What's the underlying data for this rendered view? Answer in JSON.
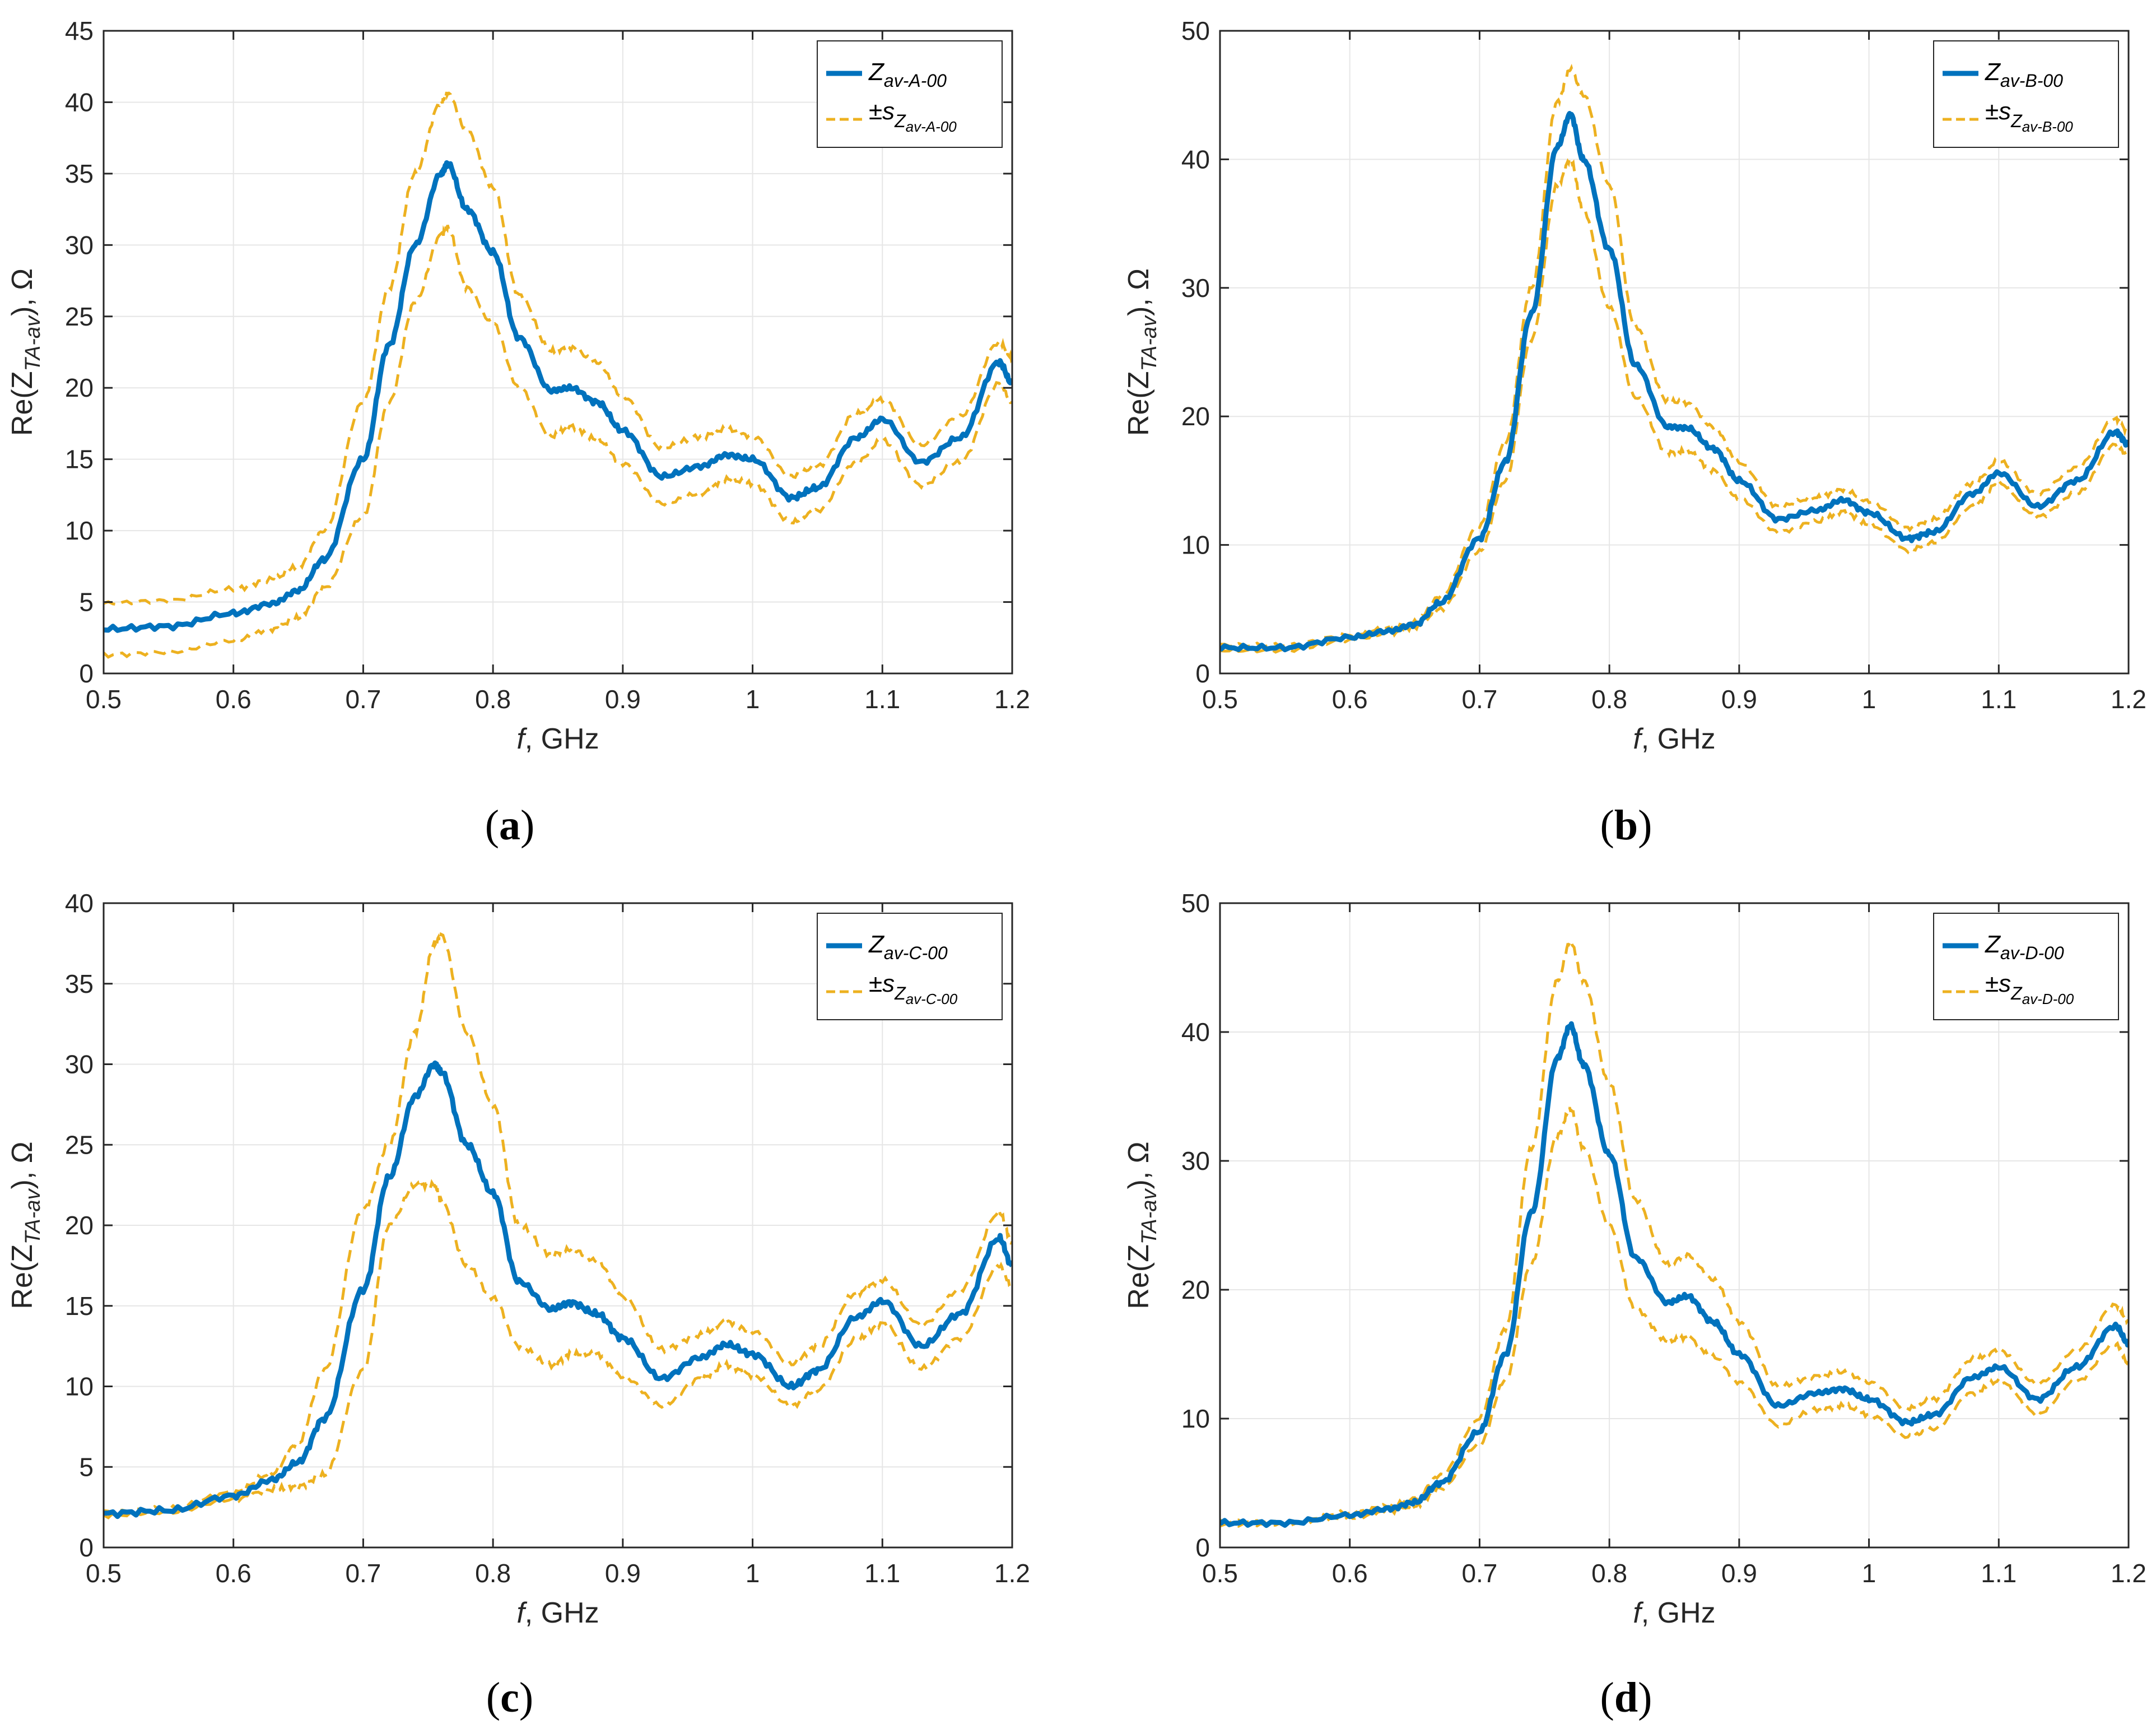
{
  "colors": {
    "mean": "#0072BD",
    "std": "#EDB120",
    "grid": "#e6e6e6",
    "axis": "#262626"
  },
  "chart_data": [
    {
      "panel": "a",
      "type": "line",
      "xlabel_italic": "f",
      "xlabel_rest": ", GHz",
      "ylabel_pre": "Re(Z",
      "ylabel_sub": "TA-av",
      "ylabel_post": "), Ω",
      "xlim": [
        0.5,
        1.2
      ],
      "ylim": [
        0,
        45
      ],
      "xticks": [
        0.5,
        0.6,
        0.7,
        0.8,
        0.9,
        1,
        1.1,
        1.2
      ],
      "xtick_labels": [
        "0.5",
        "0.6",
        "0.7",
        "0.8",
        "0.9",
        "1",
        "1.1",
        "1.2"
      ],
      "yticks": [
        0,
        5,
        10,
        15,
        20,
        25,
        30,
        35,
        40,
        45
      ],
      "ytick_labels": [
        "0",
        "5",
        "10",
        "15",
        "20",
        "25",
        "30",
        "35",
        "40",
        "45"
      ],
      "legend": {
        "mean_main": "Z",
        "mean_sub": "av-A-00",
        "std_pre": "±s",
        "std_mid": "Z",
        "std_sub": "av-A-00",
        "position": "top-right"
      },
      "x": [
        0.5,
        0.55,
        0.6,
        0.63,
        0.65,
        0.67,
        0.7,
        0.72,
        0.74,
        0.76,
        0.765,
        0.78,
        0.8,
        0.82,
        0.845,
        0.86,
        0.88,
        0.9,
        0.93,
        0.96,
        0.98,
        1.0,
        1.03,
        1.05,
        1.08,
        1.1,
        1.13,
        1.16,
        1.19,
        1.2
      ],
      "series": [
        {
          "name": "mean",
          "values": [
            3.1,
            3.3,
            4.2,
            4.9,
            5.8,
            8.0,
            15.0,
            23.0,
            30.0,
            35.0,
            35.7,
            32.5,
            29.5,
            23.5,
            19.8,
            20.0,
            19.0,
            17.0,
            13.8,
            14.5,
            15.3,
            15.0,
            12.3,
            13.0,
            16.5,
            17.8,
            14.8,
            16.5,
            21.8,
            20.3
          ]
        },
        {
          "name": "upper",
          "values": [
            4.9,
            5.1,
            5.9,
            6.6,
            7.5,
            10.0,
            19.0,
            27.0,
            35.0,
            40.0,
            40.6,
            38.0,
            34.0,
            26.5,
            22.6,
            22.8,
            21.8,
            19.4,
            15.8,
            16.6,
            17.1,
            16.6,
            13.8,
            14.5,
            18.2,
            19.2,
            16.0,
            18.0,
            23.2,
            22.1
          ]
        },
        {
          "name": "lower",
          "values": [
            1.3,
            1.5,
            2.3,
            3.1,
            3.9,
            6.0,
            11.0,
            19.0,
            26.0,
            30.7,
            31.2,
            27.0,
            24.5,
            20.0,
            16.6,
            17.3,
            16.4,
            14.7,
            11.9,
            12.6,
            13.6,
            13.3,
            10.6,
            11.4,
            14.8,
            16.3,
            13.2,
            14.8,
            20.3,
            19.0
          ]
        }
      ]
    },
    {
      "panel": "b",
      "type": "line",
      "xlabel_italic": "f",
      "xlabel_rest": ", GHz",
      "ylabel_pre": "Re(Z",
      "ylabel_sub": "TA-av",
      "ylabel_post": "), Ω",
      "xlim": [
        0.5,
        1.2
      ],
      "ylim": [
        0,
        50
      ],
      "xticks": [
        0.5,
        0.6,
        0.7,
        0.8,
        0.9,
        1,
        1.1,
        1.2
      ],
      "xtick_labels": [
        "0.5",
        "0.6",
        "0.7",
        "0.8",
        "0.9",
        "1",
        "1.1",
        "1.2"
      ],
      "yticks": [
        0,
        10,
        20,
        30,
        40,
        50
      ],
      "ytick_labels": [
        "0",
        "10",
        "20",
        "30",
        "40",
        "50"
      ],
      "legend": {
        "mean_main": "Z",
        "mean_sub": "av-B-00",
        "std_pre": "±s",
        "std_mid": "Z",
        "std_sub": "av-B-00",
        "position": "top-right"
      },
      "x": [
        0.5,
        0.55,
        0.6,
        0.63,
        0.65,
        0.67,
        0.7,
        0.72,
        0.74,
        0.76,
        0.77,
        0.78,
        0.8,
        0.82,
        0.845,
        0.86,
        0.88,
        0.9,
        0.93,
        0.96,
        0.98,
        1.0,
        1.03,
        1.05,
        1.08,
        1.1,
        1.13,
        1.16,
        1.19,
        1.2
      ],
      "series": [
        {
          "name": "mean",
          "values": [
            2.0,
            2.0,
            2.8,
            3.3,
            3.8,
            5.5,
            10.5,
            16.5,
            28.0,
            41.0,
            43.5,
            40.0,
            33.0,
            24.0,
            19.2,
            19.1,
            17.5,
            15.0,
            12.0,
            12.7,
            13.5,
            12.5,
            10.5,
            11.0,
            14.0,
            15.6,
            13.0,
            15.0,
            18.8,
            17.8
          ]
        },
        {
          "name": "upper",
          "values": [
            2.2,
            2.2,
            3.0,
            3.5,
            4.0,
            6.0,
            11.5,
            18.0,
            30.0,
            44.5,
            47.0,
            45.0,
            38.0,
            27.0,
            21.2,
            21.0,
            19.2,
            16.4,
            13.0,
            13.7,
            14.3,
            13.4,
            11.3,
            12.0,
            14.8,
            16.5,
            14.0,
            16.0,
            19.8,
            18.8
          ]
        },
        {
          "name": "lower",
          "values": [
            1.8,
            1.8,
            2.6,
            3.1,
            3.6,
            5.0,
            9.5,
            15.0,
            26.0,
            38.0,
            40.0,
            36.0,
            28.5,
            21.5,
            17.2,
            17.3,
            15.8,
            13.6,
            11.0,
            11.8,
            12.6,
            11.6,
            9.6,
            10.2,
            13.0,
            14.8,
            12.2,
            14.0,
            17.8,
            16.9
          ]
        }
      ]
    },
    {
      "panel": "c",
      "type": "line",
      "xlabel_italic": "f",
      "xlabel_rest": ", GHz",
      "ylabel_pre": "Re(Z",
      "ylabel_sub": "TA-av",
      "ylabel_post": "), Ω",
      "xlim": [
        0.5,
        1.2
      ],
      "ylim": [
        0,
        40
      ],
      "xticks": [
        0.5,
        0.6,
        0.7,
        0.8,
        0.9,
        1,
        1.1,
        1.2
      ],
      "xtick_labels": [
        "0.5",
        "0.6",
        "0.7",
        "0.8",
        "0.9",
        "1",
        "1.1",
        "1.2"
      ],
      "yticks": [
        0,
        5,
        10,
        15,
        20,
        25,
        30,
        35,
        40
      ],
      "ytick_labels": [
        "0",
        "5",
        "10",
        "15",
        "20",
        "25",
        "30",
        "35",
        "40"
      ],
      "legend": {
        "mean_main": "Z",
        "mean_sub": "av-C-00",
        "std_pre": "±s",
        "std_mid": "Z",
        "std_sub": "av-C-00",
        "position": "top-right"
      },
      "x": [
        0.5,
        0.55,
        0.6,
        0.63,
        0.65,
        0.67,
        0.7,
        0.72,
        0.74,
        0.755,
        0.76,
        0.78,
        0.8,
        0.82,
        0.845,
        0.86,
        0.88,
        0.9,
        0.93,
        0.96,
        0.98,
        1.0,
        1.03,
        1.05,
        1.08,
        1.1,
        1.13,
        1.16,
        1.19,
        1.2
      ],
      "series": [
        {
          "name": "mean",
          "values": [
            2.1,
            2.3,
            3.2,
            4.2,
            5.3,
            8.0,
            16.0,
            23.0,
            28.0,
            30.0,
            29.5,
            25.0,
            22.0,
            16.5,
            14.8,
            15.2,
            14.5,
            13.0,
            10.5,
            11.8,
            12.6,
            12.0,
            10.0,
            11.0,
            14.3,
            15.3,
            12.5,
            14.5,
            19.2,
            17.5
          ]
        },
        {
          "name": "upper",
          "values": [
            2.2,
            2.4,
            3.4,
            4.6,
            6.5,
            11.0,
            21.0,
            25.0,
            32.0,
            37.5,
            38.0,
            32.0,
            27.5,
            20.0,
            18.2,
            18.5,
            17.8,
            15.6,
            12.3,
            13.2,
            14.0,
            13.4,
            11.4,
            12.5,
            15.8,
            16.6,
            13.8,
            16.0,
            20.8,
            19.0
          ]
        },
        {
          "name": "lower",
          "values": [
            2.0,
            2.2,
            3.0,
            3.6,
            3.8,
            4.5,
            11.0,
            20.0,
            22.5,
            22.5,
            21.5,
            17.5,
            15.5,
            12.5,
            11.3,
            12.0,
            12.0,
            10.6,
            8.8,
            10.5,
            11.3,
            10.7,
            8.8,
            9.8,
            12.9,
            13.9,
            11.1,
            13.0,
            17.5,
            16.2
          ]
        }
      ]
    },
    {
      "panel": "d",
      "type": "line",
      "xlabel_italic": "f",
      "xlabel_rest": ", GHz",
      "ylabel_pre": "Re(Z",
      "ylabel_sub": "TA-av",
      "ylabel_post": "), Ω",
      "xlim": [
        0.5,
        1.2
      ],
      "ylim": [
        0,
        50
      ],
      "xticks": [
        0.5,
        0.6,
        0.7,
        0.8,
        0.9,
        1,
        1.1,
        1.2
      ],
      "xtick_labels": [
        "0.5",
        "0.6",
        "0.7",
        "0.8",
        "0.9",
        "1",
        "1.1",
        "1.2"
      ],
      "yticks": [
        0,
        10,
        20,
        30,
        40,
        50
      ],
      "ytick_labels": [
        "0",
        "10",
        "20",
        "30",
        "40",
        "50"
      ],
      "legend": {
        "mean_main": "Z",
        "mean_sub": "av-D-00",
        "std_pre": "±s",
        "std_mid": "Z",
        "std_sub": "av-D-00",
        "position": "top-right"
      },
      "x": [
        0.5,
        0.55,
        0.6,
        0.63,
        0.65,
        0.67,
        0.7,
        0.72,
        0.74,
        0.76,
        0.77,
        0.78,
        0.8,
        0.82,
        0.845,
        0.86,
        0.88,
        0.9,
        0.93,
        0.96,
        0.98,
        1.0,
        1.03,
        1.05,
        1.08,
        1.1,
        1.13,
        1.16,
        1.19,
        1.2
      ],
      "series": [
        {
          "name": "mean",
          "values": [
            1.9,
            1.9,
            2.5,
            3.0,
            3.5,
            5.0,
            9.0,
            15.0,
            26.0,
            38.0,
            40.5,
            37.5,
            30.5,
            22.5,
            19.0,
            19.5,
            17.5,
            15.0,
            11.0,
            12.0,
            12.3,
            11.5,
            9.7,
            10.3,
            13.2,
            14.0,
            11.5,
            14.0,
            17.2,
            15.8
          ]
        },
        {
          "name": "upper",
          "values": [
            2.0,
            2.0,
            2.7,
            3.2,
            3.8,
            5.6,
            10.0,
            17.0,
            31.0,
            44.0,
            47.0,
            44.0,
            36.0,
            27.0,
            22.0,
            22.7,
            20.8,
            17.5,
            12.5,
            13.3,
            13.6,
            12.8,
            10.8,
            11.5,
            14.6,
            15.3,
            12.7,
            15.3,
            18.8,
            17.6
          ]
        },
        {
          "name": "lower",
          "values": [
            1.8,
            1.8,
            2.3,
            2.8,
            3.2,
            4.6,
            8.0,
            13.0,
            22.0,
            32.0,
            34.0,
            31.0,
            25.0,
            18.5,
            16.0,
            16.3,
            14.8,
            12.8,
            9.5,
            10.7,
            11.0,
            10.3,
            8.6,
            9.2,
            12.0,
            12.9,
            10.4,
            12.9,
            15.8,
            14.3
          ]
        }
      ]
    }
  ],
  "captions": [
    {
      "open": "(",
      "letter": "a",
      "close": ")"
    },
    {
      "open": "(",
      "letter": "b",
      "close": ")"
    },
    {
      "open": "(",
      "letter": "c",
      "close": ")"
    },
    {
      "open": "(",
      "letter": "d",
      "close": ")"
    }
  ]
}
